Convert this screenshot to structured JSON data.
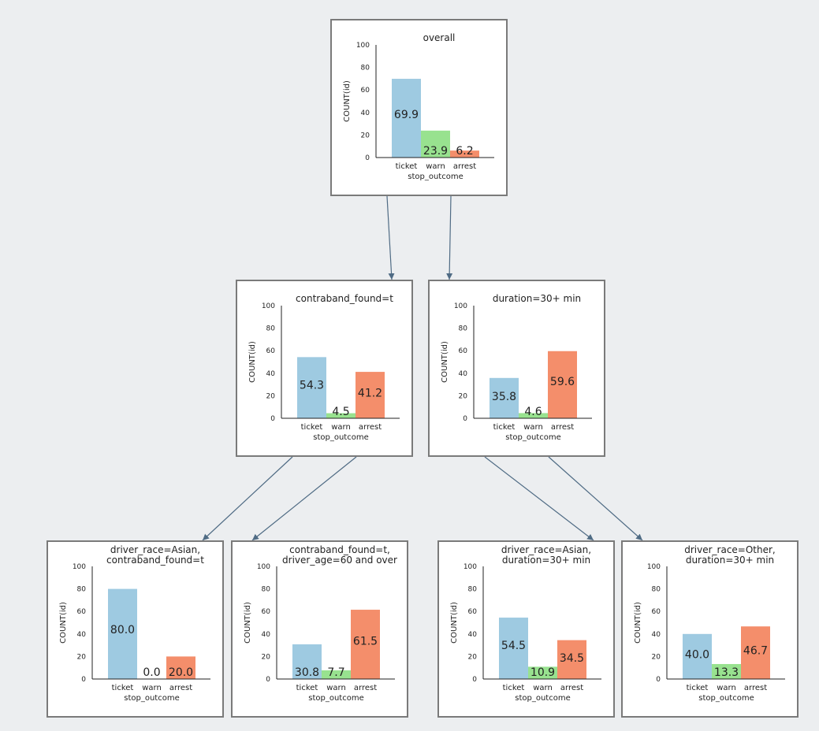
{
  "colors": {
    "ticket": "#9ecae1",
    "warn": "#98e28f",
    "arrest": "#f48e6b",
    "edge": "#4f6b84",
    "border": "#7a7a7a",
    "background": "#eceef0"
  },
  "tree": {
    "nodes": [
      {
        "id": "overall",
        "chart_data": {
          "type": "bar",
          "title_lines": [
            "overall"
          ],
          "categories": [
            "ticket",
            "warn",
            "arrest"
          ],
          "values": [
            69.9,
            23.9,
            6.2
          ],
          "value_labels": [
            "69.9",
            "23.9",
            "6.2"
          ],
          "xlabel": "stop_outcome",
          "ylabel": "COUNT(id)",
          "ylim": [
            0,
            100
          ],
          "yticks": [
            "0",
            "20",
            "40",
            "60",
            "80",
            "100"
          ]
        }
      },
      {
        "id": "contraband",
        "chart_data": {
          "type": "bar",
          "title_lines": [
            "contraband_found=t"
          ],
          "categories": [
            "ticket",
            "warn",
            "arrest"
          ],
          "values": [
            54.3,
            4.5,
            41.2
          ],
          "value_labels": [
            "54.3",
            "4.5",
            "41.2"
          ],
          "xlabel": "stop_outcome",
          "ylabel": "COUNT(id)",
          "ylim": [
            0,
            100
          ],
          "yticks": [
            "0",
            "20",
            "40",
            "60",
            "80",
            "100"
          ]
        }
      },
      {
        "id": "duration",
        "chart_data": {
          "type": "bar",
          "title_lines": [
            "duration=30+ min"
          ],
          "categories": [
            "ticket",
            "warn",
            "arrest"
          ],
          "values": [
            35.8,
            4.6,
            59.6
          ],
          "value_labels": [
            "35.8",
            "4.6",
            "59.6"
          ],
          "xlabel": "stop_outcome",
          "ylabel": "COUNT(id)",
          "ylim": [
            0,
            100
          ],
          "yticks": [
            "0",
            "20",
            "40",
            "60",
            "80",
            "100"
          ]
        }
      },
      {
        "id": "asian-contraband",
        "chart_data": {
          "type": "bar",
          "title_lines": [
            "driver_race=Asian,",
            "contraband_found=t"
          ],
          "categories": [
            "ticket",
            "warn",
            "arrest"
          ],
          "values": [
            80.0,
            0.0,
            20.0
          ],
          "value_labels": [
            "80.0",
            "0.0",
            "20.0"
          ],
          "xlabel": "stop_outcome",
          "ylabel": "COUNT(id)",
          "ylim": [
            0,
            100
          ],
          "yticks": [
            "0",
            "20",
            "40",
            "60",
            "80",
            "100"
          ]
        }
      },
      {
        "id": "contraband-age60",
        "chart_data": {
          "type": "bar",
          "title_lines": [
            "contraband_found=t,",
            "driver_age=60 and over"
          ],
          "categories": [
            "ticket",
            "warn",
            "arrest"
          ],
          "values": [
            30.8,
            7.7,
            61.5
          ],
          "value_labels": [
            "30.8",
            "7.7",
            "61.5"
          ],
          "xlabel": "stop_outcome",
          "ylabel": "COUNT(id)",
          "ylim": [
            0,
            100
          ],
          "yticks": [
            "0",
            "20",
            "40",
            "60",
            "80",
            "100"
          ]
        }
      },
      {
        "id": "asian-duration",
        "chart_data": {
          "type": "bar",
          "title_lines": [
            "driver_race=Asian,",
            "duration=30+ min"
          ],
          "categories": [
            "ticket",
            "warn",
            "arrest"
          ],
          "values": [
            54.5,
            10.9,
            34.5
          ],
          "value_labels": [
            "54.5",
            "10.9",
            "34.5"
          ],
          "xlabel": "stop_outcome",
          "ylabel": "COUNT(id)",
          "ylim": [
            0,
            100
          ],
          "yticks": [
            "0",
            "20",
            "40",
            "60",
            "80",
            "100"
          ]
        }
      },
      {
        "id": "other-duration",
        "chart_data": {
          "type": "bar",
          "title_lines": [
            "driver_race=Other,",
            "duration=30+ min"
          ],
          "categories": [
            "ticket",
            "warn",
            "arrest"
          ],
          "values": [
            40.0,
            13.3,
            46.7
          ],
          "value_labels": [
            "40.0",
            "13.3",
            "46.7"
          ],
          "xlabel": "stop_outcome",
          "ylabel": "COUNT(id)",
          "ylim": [
            0,
            100
          ],
          "yticks": [
            "0",
            "20",
            "40",
            "60",
            "80",
            "100"
          ]
        }
      }
    ],
    "edges": [
      {
        "from": "overall",
        "to": "contraband"
      },
      {
        "from": "overall",
        "to": "duration"
      },
      {
        "from": "contraband",
        "to": "asian-contraband"
      },
      {
        "from": "contraband",
        "to": "contraband-age60"
      },
      {
        "from": "duration",
        "to": "asian-duration"
      },
      {
        "from": "duration",
        "to": "other-duration"
      }
    ]
  }
}
